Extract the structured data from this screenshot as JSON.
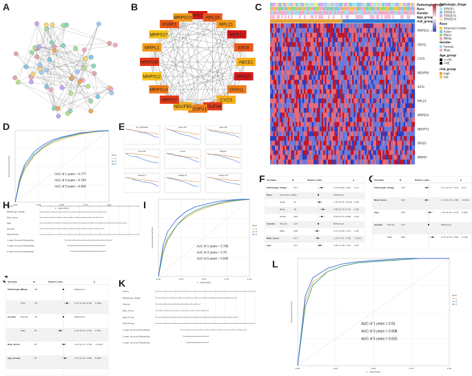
{
  "panels": {
    "A": "A",
    "B": "B",
    "C": "C",
    "D": "D",
    "E": "E",
    "F": "F",
    "G": "G",
    "H": "H",
    "I": "I",
    "J": "J",
    "K": "K",
    "L": "L"
  },
  "network": {
    "genes": [
      "MRPS18A",
      "RPL19",
      "RPL21",
      "WDR12",
      "EIF3I",
      "ABCE1",
      "RPS25",
      "OXA1L",
      "CYCS",
      "NDUFA6",
      "NDUFV1",
      "NDUFB5",
      "MRPS7",
      "MRPS14",
      "MRPS12",
      "MRPS30",
      "MRPL1",
      "MRPS27",
      "RSBP1",
      "MRPS23"
    ]
  },
  "heatmap": {
    "track_labels": [
      "Pathologic_Stage",
      "Race",
      "Gender",
      "Age_group",
      "risk_group"
    ],
    "row_labels": [
      "MRPS14",
      "OXA1L",
      "CYCS",
      "NDUFB5",
      "EIF3I",
      "RPL19",
      "MRPS23",
      "NDUFV1",
      "RPS25",
      "MRPS7"
    ],
    "legend": {
      "stage_title": "Pathologic_Stage",
      "stage_items": [
        "STAGE I",
        "STAGE II",
        "STAGE III",
        "STAGE IV"
      ],
      "race_title": "Race",
      "race_items": [
        "American Indian",
        "Asian",
        "Black",
        "White"
      ],
      "gender_title": "Gender",
      "gender_items": [
        "Female",
        "Male"
      ],
      "age_title": "Age_group",
      "age_items": [
        "<=65",
        ">65"
      ],
      "risk_title": "risk_group",
      "risk_items": [
        "high",
        "low"
      ],
      "scale_ticks": [
        "2",
        "0",
        "-2"
      ]
    },
    "colors": {
      "high": "#c0152a",
      "low": "#2b3cc0",
      "mid": "#ffffff"
    }
  },
  "roc_D": {
    "xlabel": "1 - Specificity",
    "ylabel": "True positive fraction",
    "legend_title": "time",
    "legend_items": [
      "1",
      "3",
      "5"
    ],
    "auc": [
      "AUC of 1 years = 0.777",
      "AUC of 3 years = 0.794",
      "AUC of 5 years = 0.809"
    ],
    "xticks": [
      "0.00",
      "0.25",
      "0.50",
      "0.75",
      "1.00"
    ]
  },
  "km_E": {
    "titles": [
      "all_datasets",
      "age<65",
      "age>65",
      "Female",
      "male",
      "Stage I",
      "Stage II",
      "Stage III",
      "Stage IIII"
    ]
  },
  "forest_F": {
    "headers": [
      "Variable",
      "N",
      "Hazard ratio",
      "p"
    ],
    "rows": [
      {
        "var": "Pathologic_Stage",
        "level": "",
        "n": "413",
        "hr": "1.16 (0.93, 1.45)",
        "p": "0.19"
      },
      {
        "var": "Race",
        "level": "American Indian",
        "n": "1",
        "hr": "Reference",
        "p": ""
      },
      {
        "var": "",
        "level": "Asian",
        "n": "15",
        "hr": "1.35 (0.15, 10.90)",
        "p": "0.80"
      },
      {
        "var": "",
        "level": "Black",
        "n": "38",
        "hr": "0.80 (0.10, 6.41)",
        "p": "0.84"
      },
      {
        "var": "",
        "level": "White",
        "n": "360",
        "hr": "0.94 (0.13, 6.98)",
        "p": "0.95"
      },
      {
        "var": "Gender",
        "level": "Female",
        "n": "114",
        "hr": "Reference",
        "p": ""
      },
      {
        "var": "",
        "level": "Male",
        "n": "299",
        "hr": "0.71 (0.50, 1.01)",
        "p": "0.06"
      },
      {
        "var": "Risk_Score",
        "level": "",
        "n": "413",
        "hr": "1.33 (1.27, 1.39)",
        "p": "<0.001"
      },
      {
        "var": "Age",
        "level": "",
        "n": "413",
        "hr": "1.02 (1.00, 1.03)",
        "p": "0.01"
      }
    ]
  },
  "forest_G": {
    "headers": [
      "Variable",
      "N",
      "Hazard ratio",
      "p"
    ],
    "rows": [
      {
        "var": "Pathologic_Stage",
        "level": "",
        "n": "403",
        "hr": "1.17 (0.97, 1.41)",
        "p": "0.11"
      },
      {
        "var": "Risk_Score",
        "level": "",
        "n": "403",
        "hr": "1.32 (1.27, 1.38)",
        "p": "<0.001"
      },
      {
        "var": "Age",
        "level": "",
        "n": "403",
        "hr": "1.02 (1.01, 1.03)",
        "p": "0.006"
      },
      {
        "var": "Gender",
        "level": "Female",
        "n": "114",
        "hr": "Reference",
        "p": ""
      },
      {
        "var": "",
        "level": "Male",
        "n": "289",
        "hr": "0.75 (0.53, 1.06)",
        "p": "0.106"
      }
    ]
  },
  "nomo_H": {
    "rows": [
      "Points",
      "Pathologic_Stage",
      "Risk_Score",
      "Age",
      "Gender",
      "Total Points",
      "1-year Survival Probability",
      "3-year Survival Probability",
      "5-year Survival Probability"
    ]
  },
  "roc_I": {
    "xlabel": "1 - Specificity",
    "ylabel": "True positive fraction",
    "legend_title": "time",
    "legend_items": [
      "1",
      "3",
      "5"
    ],
    "auc": [
      "AUC of 1 years = 0.789",
      "AUC of 3 years = 0.79",
      "AUC of 5 years = 0.845"
    ],
    "xticks": [
      "0.00",
      "0.25",
      "0.50",
      "0.75",
      "1.00"
    ]
  },
  "forest_J": {
    "headers": [
      "Variable",
      "N",
      "Hazard ratio",
      "p"
    ],
    "rows": [
      {
        "var": "Pathologic_Stage",
        "level": "I/II",
        "n": "58",
        "hr": "Reference",
        "p": ""
      },
      {
        "var": "",
        "level": "III/IV",
        "n": "29",
        "hr": "2.31 (1.28, 4.18)",
        "p": "0.006"
      },
      {
        "var": "Gender",
        "level": "Female",
        "n": "26",
        "hr": "Reference",
        "p": ""
      },
      {
        "var": "",
        "level": "Male",
        "n": "61",
        "hr": "1.35 (0.72, 2.55)",
        "p": "0.357"
      },
      {
        "var": "Risk_Score",
        "level": "",
        "n": "87",
        "hr": "1.23 (1.17, 1.30)",
        "p": "<0.001"
      },
      {
        "var": "Age_Group",
        "level": "",
        "n": "87",
        "hr": "1.12 (0.70, 1.80)",
        "p": "0.634"
      }
    ]
  },
  "nomo_K": {
    "rows": [
      "Points",
      "Pathologic_Stage",
      "Gender",
      "Risk_Score",
      "Age_Group",
      "Total Points",
      "1-year Survival Probability",
      "3-year Survival Probability",
      "5-year Survival Probability"
    ]
  },
  "roc_L": {
    "xlabel": "1 - Specificity",
    "ylabel": "True positive fraction",
    "legend_title": "time",
    "legend_items": [
      "1",
      "3",
      "5"
    ],
    "auc": [
      "AUC of 1 years = 0.91",
      "AUC of 3 years = 0.908",
      "AUC of 5 years = 0.922"
    ],
    "xticks": [
      "0.00",
      "0.25",
      "0.50",
      "0.75",
      "1.00"
    ]
  },
  "chart_data": [
    {
      "type": "line",
      "title": "",
      "xlabel": "1 - Specificity",
      "ylabel": "True positive fraction",
      "xlim": [
        0,
        1
      ],
      "ylim": [
        0,
        1
      ],
      "x": [
        0,
        0.05,
        0.1,
        0.2,
        0.3,
        0.4,
        0.5,
        0.6,
        0.7,
        0.8,
        0.9,
        1.0
      ],
      "series": [
        {
          "name": "1",
          "values": [
            0,
            0.28,
            0.45,
            0.64,
            0.76,
            0.83,
            0.88,
            0.92,
            0.95,
            0.97,
            0.99,
            1.0
          ]
        },
        {
          "name": "3",
          "values": [
            0,
            0.3,
            0.48,
            0.66,
            0.77,
            0.85,
            0.9,
            0.93,
            0.96,
            0.98,
            0.99,
            1.0
          ]
        },
        {
          "name": "5",
          "values": [
            0,
            0.33,
            0.52,
            0.7,
            0.8,
            0.87,
            0.91,
            0.94,
            0.97,
            0.98,
            0.995,
            1.0
          ]
        }
      ]
    },
    {
      "type": "line",
      "title": "",
      "xlabel": "1 - Specificity",
      "ylabel": "True positive fraction",
      "xlim": [
        0,
        1
      ],
      "ylim": [
        0,
        1
      ],
      "x": [
        0,
        0.05,
        0.1,
        0.2,
        0.3,
        0.4,
        0.5,
        0.6,
        0.7,
        0.8,
        0.9,
        1.0
      ],
      "series": [
        {
          "name": "1",
          "values": [
            0,
            0.35,
            0.5,
            0.66,
            0.76,
            0.83,
            0.88,
            0.92,
            0.95,
            0.97,
            0.99,
            1.0
          ]
        },
        {
          "name": "3",
          "values": [
            0,
            0.3,
            0.47,
            0.66,
            0.78,
            0.85,
            0.9,
            0.93,
            0.96,
            0.98,
            0.99,
            1.0
          ]
        },
        {
          "name": "5",
          "values": [
            0,
            0.4,
            0.58,
            0.74,
            0.84,
            0.9,
            0.93,
            0.96,
            0.98,
            0.99,
            1.0,
            1.0
          ]
        }
      ]
    },
    {
      "type": "line",
      "title": "",
      "xlabel": "1 - Specificity",
      "ylabel": "True positive fraction",
      "xlim": [
        0,
        1
      ],
      "ylim": [
        0,
        1
      ],
      "x": [
        0,
        0.05,
        0.1,
        0.2,
        0.3,
        0.4,
        0.5,
        0.6,
        0.7,
        0.8,
        0.9,
        1.0
      ],
      "series": [
        {
          "name": "1",
          "values": [
            0,
            0.6,
            0.78,
            0.88,
            0.93,
            0.96,
            0.97,
            0.98,
            0.99,
            1.0,
            1.0,
            1.0
          ]
        },
        {
          "name": "3",
          "values": [
            0,
            0.55,
            0.75,
            0.88,
            0.93,
            0.96,
            0.97,
            0.98,
            0.99,
            1.0,
            1.0,
            1.0
          ]
        },
        {
          "name": "5",
          "values": [
            0,
            0.65,
            0.82,
            0.91,
            0.95,
            0.97,
            0.98,
            0.99,
            1.0,
            1.0,
            1.0,
            1.0
          ]
        }
      ]
    }
  ]
}
